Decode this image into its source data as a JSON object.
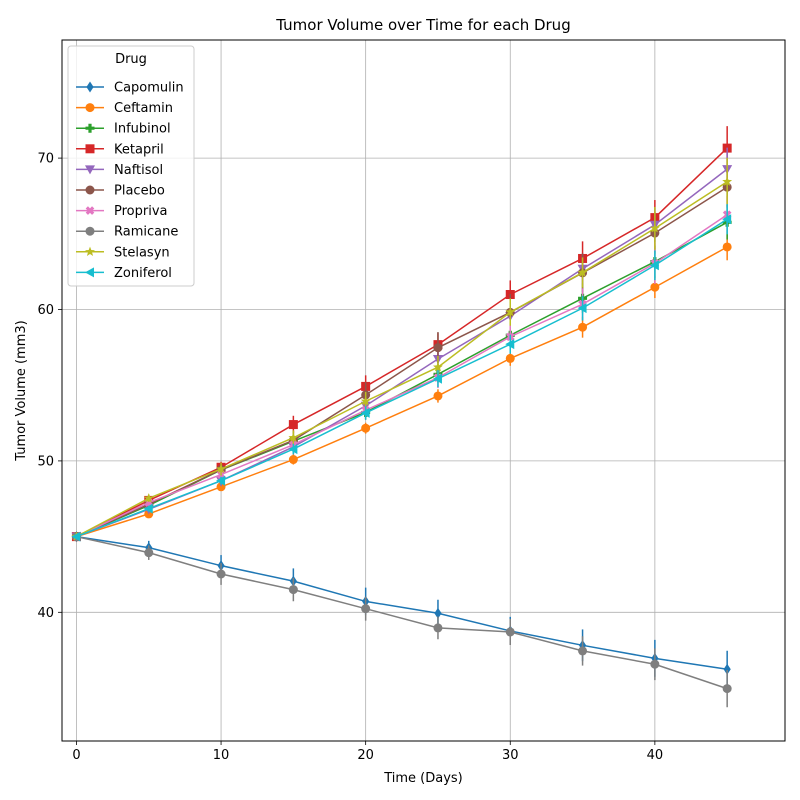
{
  "chart_data": {
    "type": "line",
    "title": "Tumor Volume over Time for each Drug",
    "xlabel": "Time (Days)",
    "ylabel": "Tumor Volume (mm3)",
    "xlim": [
      -1,
      49
    ],
    "ylim": [
      31.5,
      77.8
    ],
    "xticks": [
      0,
      10,
      20,
      30,
      40
    ],
    "yticks": [
      40,
      50,
      60,
      70
    ],
    "grid": true,
    "legend_title": "Drug",
    "legend_position": "top-left",
    "x": [
      0,
      5,
      10,
      15,
      20,
      25,
      30,
      35,
      40,
      45
    ],
    "series": [
      {
        "name": "Capomulin",
        "color": "#1f77b4",
        "marker": "diamond",
        "values": [
          45.0,
          44.27,
          43.08,
          42.06,
          40.72,
          39.94,
          38.77,
          37.82,
          36.96,
          36.24
        ],
        "errors": [
          0,
          0.45,
          0.7,
          0.84,
          0.91,
          0.89,
          0.93,
          1.05,
          1.22,
          1.22
        ]
      },
      {
        "name": "Ceftamin",
        "color": "#ff7f0e",
        "marker": "circle",
        "values": [
          45.0,
          46.5,
          48.29,
          50.09,
          52.16,
          54.29,
          56.77,
          58.83,
          61.47,
          64.13
        ],
        "errors": [
          0,
          0.16,
          0.24,
          0.33,
          0.36,
          0.44,
          0.49,
          0.69,
          0.71,
          0.88
        ]
      },
      {
        "name": "Infubinol",
        "color": "#2ca02c",
        "marker": "plus",
        "values": [
          45.0,
          47.06,
          49.4,
          51.3,
          53.2,
          55.72,
          58.3,
          60.74,
          63.16,
          65.76
        ],
        "errors": [
          0,
          0.24,
          0.28,
          0.36,
          0.48,
          0.55,
          0.63,
          0.98,
          1.06,
          1.14
        ]
      },
      {
        "name": "Ketapril",
        "color": "#d62728",
        "marker": "square",
        "values": [
          45.0,
          47.39,
          49.58,
          52.4,
          54.92,
          57.68,
          60.99,
          63.37,
          66.07,
          70.66
        ],
        "errors": [
          0,
          0.26,
          0.36,
          0.58,
          0.73,
          0.76,
          0.93,
          1.13,
          1.16,
          1.45
        ]
      },
      {
        "name": "Naftisol",
        "color": "#9467bd",
        "marker": "triangle-down",
        "values": [
          45.0,
          46.8,
          48.69,
          50.93,
          53.64,
          56.73,
          59.56,
          62.69,
          65.6,
          69.27
        ],
        "errors": [
          0,
          0.2,
          0.36,
          0.5,
          0.62,
          0.76,
          0.91,
          1.01,
          1.13,
          1.42
        ]
      },
      {
        "name": "Placebo",
        "color": "#8c564b",
        "marker": "circle",
        "values": [
          45.0,
          47.13,
          49.42,
          51.36,
          54.36,
          57.48,
          59.81,
          62.42,
          65.05,
          68.08
        ],
        "errors": [
          0,
          0.22,
          0.4,
          0.61,
          0.84,
          1.03,
          1.22,
          1.29,
          1.37,
          1.35
        ]
      },
      {
        "name": "Propriva",
        "color": "#e377c2",
        "marker": "x",
        "values": [
          45.0,
          47.25,
          49.1,
          51.07,
          53.35,
          55.5,
          58.2,
          60.35,
          63.05,
          66.26
        ],
        "errors": [
          0,
          0.23,
          0.38,
          0.47,
          0.56,
          0.69,
          0.9,
          1.05,
          1.36,
          1.24
        ]
      },
      {
        "name": "Ramicane",
        "color": "#7f7f7f",
        "marker": "circle",
        "values": [
          45.0,
          43.94,
          42.53,
          41.5,
          40.24,
          38.97,
          38.7,
          37.45,
          36.57,
          34.96
        ],
        "errors": [
          0,
          0.48,
          0.72,
          0.77,
          0.79,
          0.75,
          0.86,
          0.97,
          1.05,
          1.23
        ]
      },
      {
        "name": "Stelasyn",
        "color": "#bcbd22",
        "marker": "star",
        "values": [
          45.0,
          47.53,
          49.46,
          51.53,
          53.94,
          56.19,
          59.83,
          62.44,
          65.36,
          68.44
        ],
        "errors": [
          0,
          0.24,
          0.43,
          0.49,
          0.62,
          0.74,
          0.9,
          1.0,
          1.41,
          1.58
        ]
      },
      {
        "name": "Zoniferol",
        "color": "#17becf",
        "marker": "triangle-left",
        "values": [
          45.0,
          46.85,
          48.69,
          50.78,
          53.17,
          55.43,
          57.71,
          60.09,
          62.92,
          65.96
        ],
        "errors": [
          0,
          0.19,
          0.26,
          0.35,
          0.44,
          0.56,
          0.63,
          0.82,
          0.98,
          1.0
        ]
      }
    ]
  }
}
